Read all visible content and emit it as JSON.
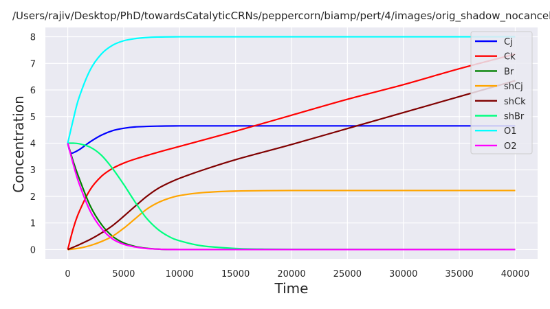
{
  "chart_data": {
    "type": "line",
    "title": "/Users/rajiv/Desktop/PhD/towardsCatalyticCRNs/peppercorn/biamp/pert/4/images/orig_shadow_nocancel.",
    "xlabel": "Time",
    "ylabel": "Concentration",
    "xlim": [
      -2000,
      42000
    ],
    "ylim": [
      -0.35,
      8.35
    ],
    "xticks": [
      0,
      5000,
      10000,
      15000,
      20000,
      25000,
      30000,
      35000,
      40000
    ],
    "yticks": [
      0,
      1,
      2,
      3,
      4,
      5,
      6,
      7,
      8
    ],
    "grid": true,
    "legend_position": "top-right",
    "series": [
      {
        "name": "Cj",
        "color": "#0000ff",
        "x": [
          0,
          300,
          1000,
          2000,
          3000,
          4000,
          5000,
          6000,
          8000,
          10000,
          15000,
          20000,
          30000,
          40000
        ],
        "y": [
          4.0,
          3.62,
          3.75,
          4.05,
          4.3,
          4.47,
          4.56,
          4.61,
          4.64,
          4.65,
          4.65,
          4.65,
          4.65,
          4.65
        ]
      },
      {
        "name": "Ck",
        "color": "#ff0000",
        "x": [
          0,
          500,
          1000,
          2000,
          3000,
          4000,
          5000,
          6000,
          8000,
          10000,
          15000,
          20000,
          25000,
          30000,
          35000,
          40000
        ],
        "y": [
          0,
          0.8,
          1.4,
          2.25,
          2.75,
          3.05,
          3.25,
          3.4,
          3.65,
          3.88,
          4.45,
          5.05,
          5.65,
          6.2,
          6.8,
          7.35
        ]
      },
      {
        "name": "Br",
        "color": "#008000",
        "x": [
          0,
          500,
          1000,
          2000,
          3000,
          4000,
          5000,
          6000,
          7000,
          8000,
          10000,
          20000,
          30000,
          40000
        ],
        "y": [
          4.0,
          3.3,
          2.7,
          1.65,
          0.95,
          0.5,
          0.25,
          0.12,
          0.05,
          0.02,
          0,
          0,
          0,
          0
        ]
      },
      {
        "name": "shCj",
        "color": "#ffa500",
        "x": [
          0,
          1000,
          2000,
          3000,
          4000,
          5000,
          6000,
          7000,
          8000,
          9000,
          10000,
          12000,
          15000,
          20000,
          30000,
          40000
        ],
        "y": [
          0,
          0.05,
          0.15,
          0.3,
          0.5,
          0.8,
          1.15,
          1.5,
          1.75,
          1.92,
          2.03,
          2.14,
          2.2,
          2.22,
          2.22,
          2.22
        ]
      },
      {
        "name": "shCk",
        "color": "#800000",
        "x": [
          0,
          1000,
          2000,
          3000,
          4000,
          5000,
          6000,
          7000,
          8000,
          9000,
          10000,
          12000,
          15000,
          20000,
          25000,
          30000,
          35000,
          40000
        ],
        "y": [
          0,
          0.18,
          0.38,
          0.62,
          0.9,
          1.25,
          1.62,
          1.98,
          2.28,
          2.5,
          2.68,
          2.98,
          3.38,
          3.95,
          4.55,
          5.15,
          5.75,
          6.35
        ]
      },
      {
        "name": "shBr",
        "color": "#00ff7f",
        "x": [
          0,
          500,
          1000,
          2000,
          3000,
          4000,
          5000,
          6000,
          7000,
          8000,
          9000,
          10000,
          12000,
          15000,
          17000,
          20000,
          30000,
          40000
        ],
        "y": [
          4.0,
          4.0,
          3.98,
          3.85,
          3.55,
          3.05,
          2.45,
          1.8,
          1.2,
          0.78,
          0.5,
          0.33,
          0.14,
          0.04,
          0.02,
          0.01,
          0,
          0
        ]
      },
      {
        "name": "O1",
        "color": "#00ffff",
        "x": [
          0,
          500,
          1000,
          2000,
          3000,
          4000,
          5000,
          6000,
          7000,
          8000,
          10000,
          15000,
          20000,
          30000,
          40000
        ],
        "y": [
          4.0,
          4.9,
          5.7,
          6.75,
          7.35,
          7.68,
          7.85,
          7.93,
          7.97,
          7.99,
          8.0,
          8.0,
          8.0,
          8.0,
          8.0
        ]
      },
      {
        "name": "O2",
        "color": "#ff00ff",
        "x": [
          0,
          500,
          1000,
          2000,
          3000,
          4000,
          5000,
          6000,
          7000,
          8000,
          10000,
          20000,
          30000,
          40000
        ],
        "y": [
          4.0,
          3.2,
          2.5,
          1.45,
          0.8,
          0.4,
          0.2,
          0.1,
          0.04,
          0.02,
          0,
          0,
          0,
          0
        ]
      }
    ]
  }
}
